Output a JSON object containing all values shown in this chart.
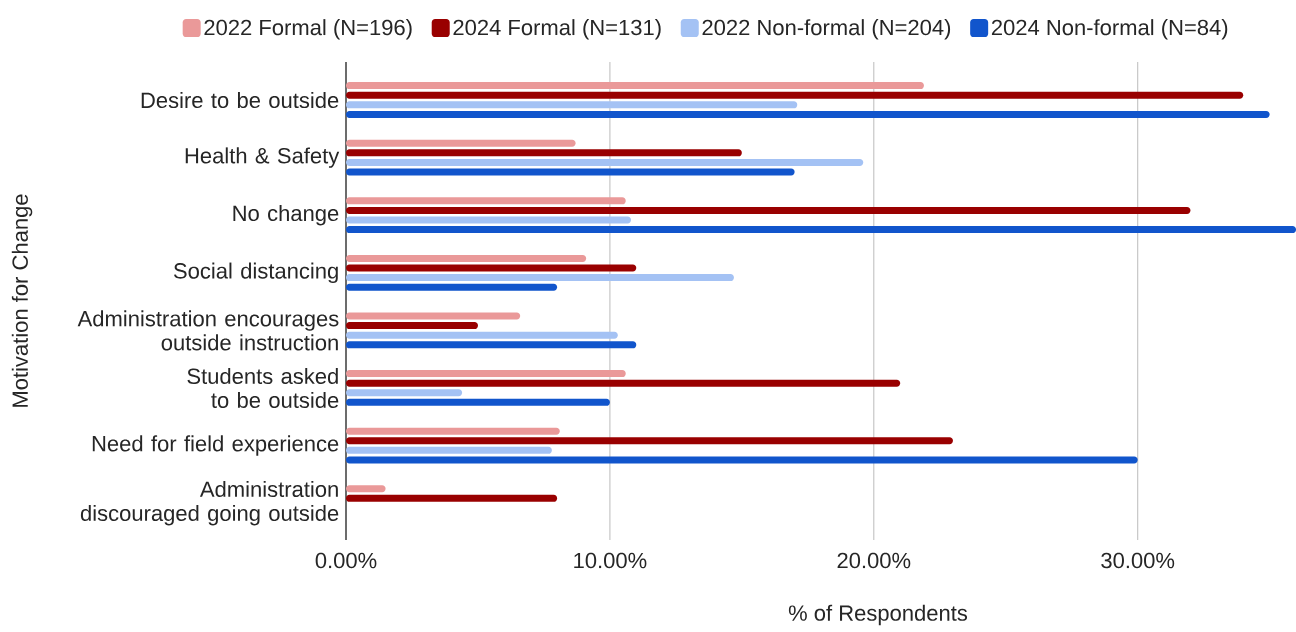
{
  "chart_data": {
    "type": "bar",
    "orientation": "horizontal",
    "xlabel": "% of Respondents",
    "ylabel": "Motivation for Change",
    "categories": [
      "Desire to be outside",
      "Health & Safety",
      "No change",
      "Social distancing",
      "Administration encourages outside instruction",
      "Students asked to be outside",
      "Need for field experience",
      "Administration discouraged going outside"
    ],
    "series": [
      {
        "name": "2022 Formal (N=196)",
        "color": "#ea9999",
        "values": [
          21.9,
          8.7,
          10.6,
          9.1,
          6.6,
          10.6,
          8.1,
          1.5
        ]
      },
      {
        "name": "2024 Formal (N=131)",
        "color": "#990000",
        "values": [
          34.0,
          15.0,
          32.0,
          11.0,
          5.0,
          21.0,
          23.0,
          8.0
        ]
      },
      {
        "name": "2022 Non-formal (N=204)",
        "color": "#a4c2f4",
        "values": [
          17.1,
          19.6,
          10.8,
          14.7,
          10.3,
          4.4,
          7.8,
          null
        ]
      },
      {
        "name": "2024 Non-formal (N=84)",
        "color": "#1155cc",
        "values": [
          35.0,
          17.0,
          36.0,
          8.0,
          11.0,
          10.0,
          30.0,
          null
        ]
      }
    ],
    "xlim": [
      0,
      36
    ],
    "xticks": [
      {
        "value": 0,
        "label": "0.00%"
      },
      {
        "value": 10,
        "label": "10.00%"
      },
      {
        "value": 20,
        "label": "20.00%"
      },
      {
        "value": 30,
        "label": "30.00%"
      }
    ],
    "grid": "x",
    "legend": "top"
  }
}
